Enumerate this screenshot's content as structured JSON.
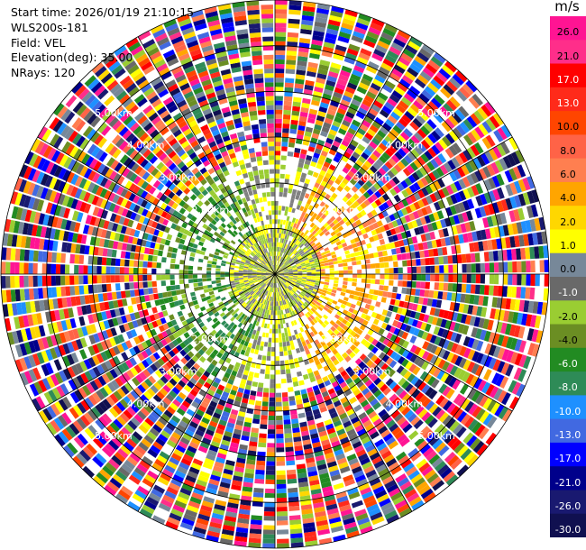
{
  "info": {
    "start_time": "Start time: 2026/01/19 21:10:15",
    "instrument": "WLS200s-181",
    "field": "Field: VEL",
    "elevation": "Elevation(deg): 35.00",
    "nrays": "NRays: 120"
  },
  "chart_data": {
    "type": "heatmap",
    "projection": "polar-ppi",
    "field": "VEL",
    "unit": "m/s",
    "n_rays": 120,
    "range_rings_km": [
      1.0,
      2.0,
      3.0,
      4.0,
      5.0,
      6.0
    ],
    "range_ring_labels": [
      "1.00km",
      "2.00km",
      "3.00km",
      "4.00km",
      "5.00km",
      "6.00km"
    ],
    "max_range_km": 6.0,
    "spoke_directions_deg": [
      0,
      30,
      60,
      90,
      120,
      150,
      180,
      210,
      240,
      270,
      300,
      330
    ],
    "colorbar": {
      "ticks": [
        "26.0",
        "21.0",
        "17.0",
        "13.0",
        "10.0",
        "8.0",
        "6.0",
        "4.0",
        "2.0",
        "1.0",
        "0.0",
        "-1.0",
        "-2.0",
        "-4.0",
        "-6.0",
        "-8.0",
        "-10.0",
        "-13.0",
        "-17.0",
        "-21.0",
        "-26.0",
        "-30.0"
      ],
      "colors": [
        "#ff1493",
        "#ff2e8a",
        "#ff0000",
        "#ff2a1a",
        "#ff4500",
        "#ff6347",
        "#ff7f50",
        "#ffa500",
        "#ffd700",
        "#ffff00",
        "#778899",
        "#696969",
        "#9acd32",
        "#6b8e23",
        "#228b22",
        "#2e8b57",
        "#1e90ff",
        "#4169e1",
        "#0000ff",
        "#00008b",
        "#191970",
        "#101050"
      ]
    },
    "pattern": {
      "inner_radius_km": 1.05,
      "inner_colors": [
        "#808080",
        "#9acd32",
        "#ffff00"
      ],
      "near_field_km": 2.6,
      "positive_sector_deg": [
        20,
        160
      ],
      "negative_sector_deg": [
        200,
        340
      ],
      "outer_noise": true
    }
  }
}
